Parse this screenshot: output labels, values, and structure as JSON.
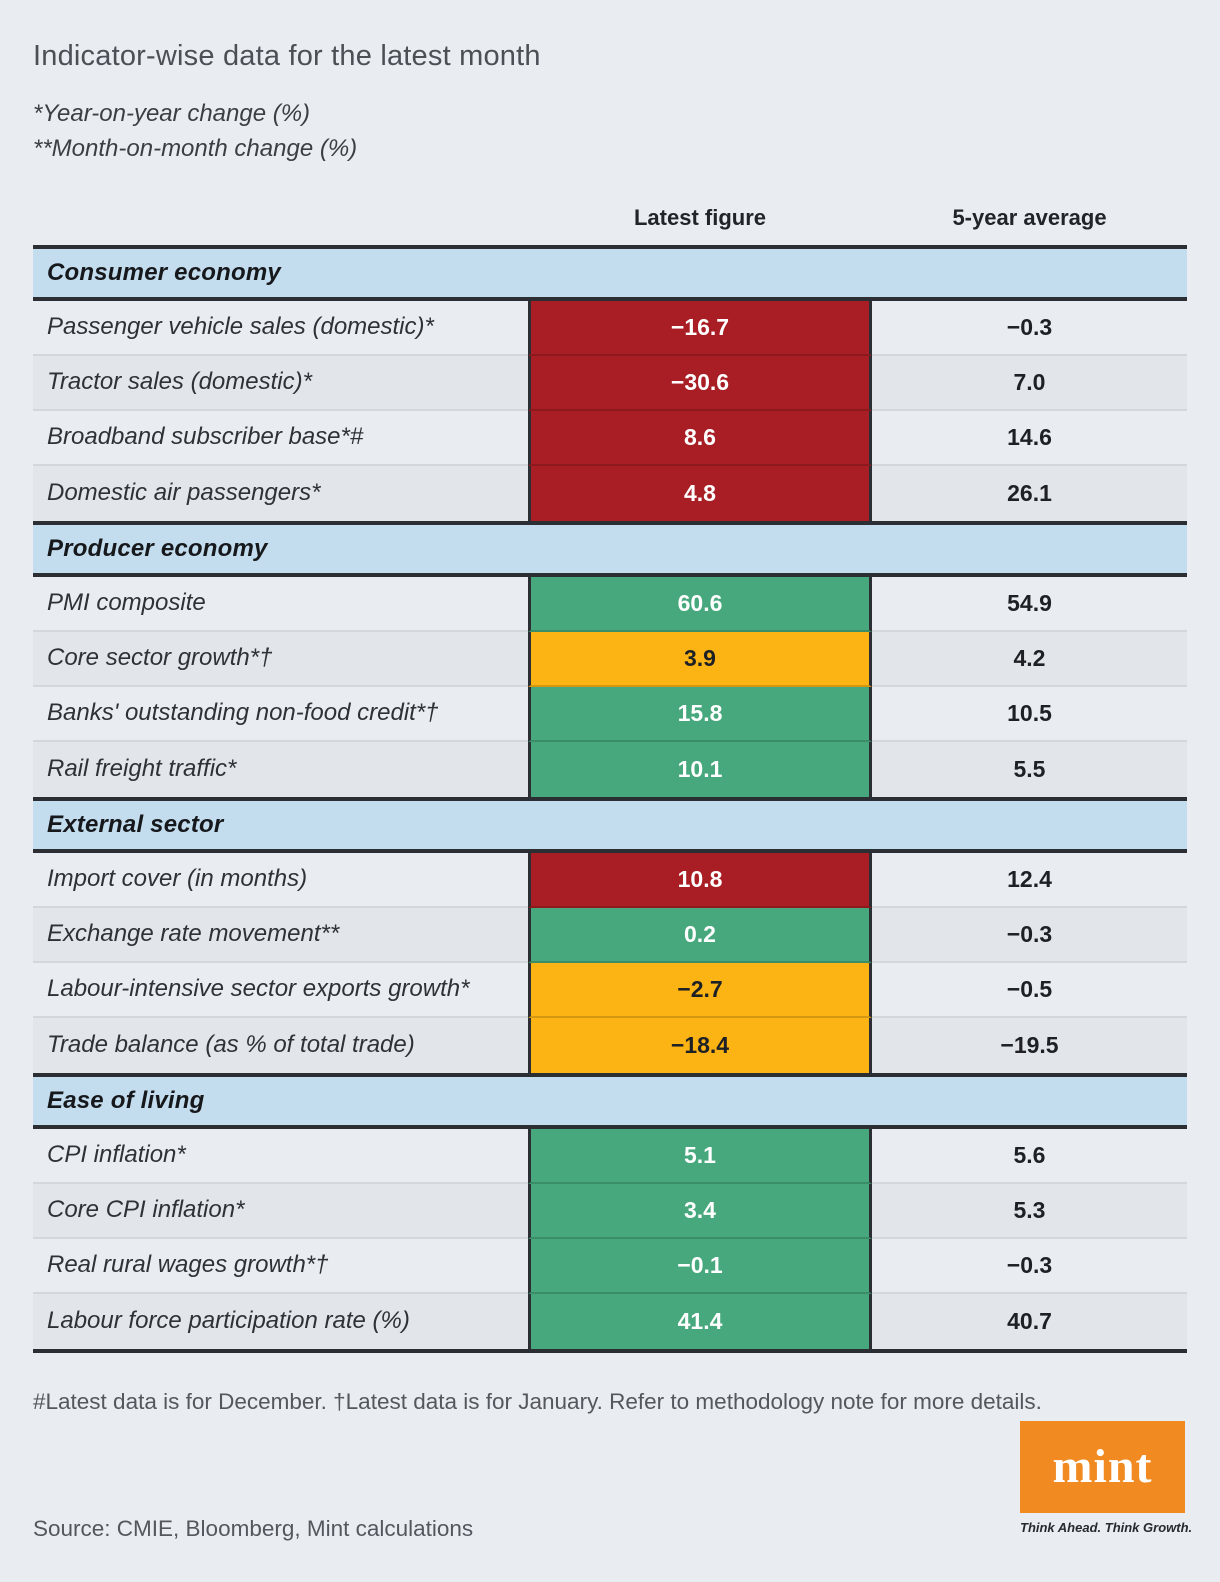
{
  "header": {
    "title": "Indicator-wise data for the latest month",
    "note1": "*Year-on-year change (%)",
    "note2": "**Month-on-month change (%)"
  },
  "columns": {
    "latest": "Latest figure",
    "average": "5-year average"
  },
  "colors": {
    "red": "#a81e24",
    "green": "#47a87d",
    "yellow": "#fcb415",
    "dark_text": "#1d2025",
    "section_blue": "#c3ddee",
    "logo_orange": "#f08a21"
  },
  "sections": [
    {
      "title": "Consumer economy",
      "rows": [
        {
          "label": "Passenger vehicle sales (domestic)*",
          "latest": "−16.7",
          "color": "red",
          "average": "−0.3"
        },
        {
          "label": "Tractor sales (domestic)*",
          "latest": "−30.6",
          "color": "red",
          "average": "7.0"
        },
        {
          "label": "Broadband subscriber base*#",
          "latest": "8.6",
          "color": "red",
          "average": "14.6"
        },
        {
          "label": "Domestic air passengers*",
          "latest": "4.8",
          "color": "red",
          "average": "26.1"
        }
      ]
    },
    {
      "title": "Producer economy",
      "rows": [
        {
          "label": "PMI composite",
          "latest": "60.6",
          "color": "green",
          "average": "54.9"
        },
        {
          "label": "Core sector growth*†",
          "latest": "3.9",
          "color": "yellow",
          "average": "4.2"
        },
        {
          "label": "Banks' outstanding non-food credit*†",
          "latest": "15.8",
          "color": "green",
          "average": "10.5"
        },
        {
          "label": "Rail freight traffic*",
          "latest": "10.1",
          "color": "green",
          "average": "5.5"
        }
      ]
    },
    {
      "title": "External sector",
      "rows": [
        {
          "label": "Import cover (in months)",
          "latest": "10.8",
          "color": "red",
          "average": "12.4"
        },
        {
          "label": "Exchange rate movement**",
          "latest": "0.2",
          "color": "green",
          "average": "−0.3"
        },
        {
          "label": "Labour-intensive sector exports growth*",
          "latest": "−2.7",
          "color": "yellow",
          "average": "−0.5"
        },
        {
          "label": "Trade balance (as % of total trade)",
          "latest": "−18.4",
          "color": "yellow",
          "average": "−19.5"
        }
      ]
    },
    {
      "title": "Ease of living",
      "rows": [
        {
          "label": "CPI inflation*",
          "latest": "5.1",
          "color": "green",
          "average": "5.6"
        },
        {
          "label": "Core CPI inflation*",
          "latest": "3.4",
          "color": "green",
          "average": "5.3"
        },
        {
          "label": "Real rural wages growth*†",
          "latest": "−0.1",
          "color": "green",
          "average": "−0.3"
        },
        {
          "label": "Labour force participation rate (%)",
          "latest": "41.4",
          "color": "green",
          "average": "40.7"
        }
      ]
    }
  ],
  "footer": {
    "note": "#Latest data is for December. †Latest data is for January. Refer to methodology note for more details.",
    "source": "Source: CMIE, Bloomberg, Mint calculations",
    "logo_text": "mint",
    "logo_tagline": "Think Ahead. Think Growth."
  },
  "chart_data": {
    "type": "table",
    "title": "Indicator-wise data for the latest month",
    "columns": [
      "Indicator",
      "Latest figure",
      "5-year average"
    ],
    "cell_color_column": "Latest figure",
    "sections": [
      {
        "name": "Consumer economy",
        "rows": [
          {
            "indicator": "Passenger vehicle sales (domestic)*",
            "latest": -16.7,
            "average": -0.3,
            "latest_cell_color": "red"
          },
          {
            "indicator": "Tractor sales (domestic)*",
            "latest": -30.6,
            "average": 7.0,
            "latest_cell_color": "red"
          },
          {
            "indicator": "Broadband subscriber base*#",
            "latest": 8.6,
            "average": 14.6,
            "latest_cell_color": "red"
          },
          {
            "indicator": "Domestic air passengers*",
            "latest": 4.8,
            "average": 26.1,
            "latest_cell_color": "red"
          }
        ]
      },
      {
        "name": "Producer economy",
        "rows": [
          {
            "indicator": "PMI composite",
            "latest": 60.6,
            "average": 54.9,
            "latest_cell_color": "green"
          },
          {
            "indicator": "Core sector growth*†",
            "latest": 3.9,
            "average": 4.2,
            "latest_cell_color": "yellow"
          },
          {
            "indicator": "Banks' outstanding non-food credit*†",
            "latest": 15.8,
            "average": 10.5,
            "latest_cell_color": "green"
          },
          {
            "indicator": "Rail freight traffic*",
            "latest": 10.1,
            "average": 5.5,
            "latest_cell_color": "green"
          }
        ]
      },
      {
        "name": "External sector",
        "rows": [
          {
            "indicator": "Import cover (in months)",
            "latest": 10.8,
            "average": 12.4,
            "latest_cell_color": "red"
          },
          {
            "indicator": "Exchange rate movement**",
            "latest": 0.2,
            "average": -0.3,
            "latest_cell_color": "green"
          },
          {
            "indicator": "Labour-intensive sector exports growth*",
            "latest": -2.7,
            "average": -0.5,
            "latest_cell_color": "yellow"
          },
          {
            "indicator": "Trade balance (as % of total trade)",
            "latest": -18.4,
            "average": -19.5,
            "latest_cell_color": "yellow"
          }
        ]
      },
      {
        "name": "Ease of living",
        "rows": [
          {
            "indicator": "CPI inflation*",
            "latest": 5.1,
            "average": 5.6,
            "latest_cell_color": "green"
          },
          {
            "indicator": "Core CPI inflation*",
            "latest": 3.4,
            "average": 5.3,
            "latest_cell_color": "green"
          },
          {
            "indicator": "Real rural wages growth*†",
            "latest": -0.1,
            "average": -0.3,
            "latest_cell_color": "green"
          },
          {
            "indicator": "Labour force participation rate (%)",
            "latest": 41.4,
            "average": 40.7,
            "latest_cell_color": "green"
          }
        ]
      }
    ]
  }
}
